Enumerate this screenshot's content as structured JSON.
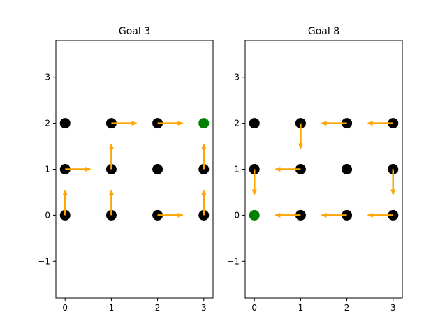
{
  "colors": {
    "state": "#000000",
    "goal": "#008000",
    "arrow": "#FFA500",
    "frame": "#000000",
    "background": "#ffffff"
  },
  "chart_data": [
    {
      "type": "scatter",
      "title": "Goal 3",
      "xlabel": "",
      "ylabel": "",
      "xlim": [
        -0.2,
        3.2
      ],
      "ylim": [
        -1.8,
        3.8
      ],
      "xticks": [
        0,
        1,
        2,
        3
      ],
      "yticks": [
        -1,
        0,
        1,
        2,
        3
      ],
      "tick_labels_x": [
        "0",
        "1",
        "2",
        "3"
      ],
      "tick_labels_y": [
        "−1",
        "0",
        "1",
        "2",
        "3"
      ],
      "grid": false,
      "points": [
        {
          "x": 0,
          "y": 0,
          "kind": "state"
        },
        {
          "x": 1,
          "y": 0,
          "kind": "state"
        },
        {
          "x": 2,
          "y": 0,
          "kind": "state"
        },
        {
          "x": 3,
          "y": 0,
          "kind": "state"
        },
        {
          "x": 0,
          "y": 1,
          "kind": "state"
        },
        {
          "x": 1,
          "y": 1,
          "kind": "state"
        },
        {
          "x": 2,
          "y": 1,
          "kind": "state"
        },
        {
          "x": 3,
          "y": 1,
          "kind": "state"
        },
        {
          "x": 0,
          "y": 2,
          "kind": "state"
        },
        {
          "x": 1,
          "y": 2,
          "kind": "state"
        },
        {
          "x": 2,
          "y": 2,
          "kind": "state"
        },
        {
          "x": 3,
          "y": 2,
          "kind": "goal"
        }
      ],
      "arrows": [
        {
          "x": 0,
          "y": 0,
          "dir": "up"
        },
        {
          "x": 1,
          "y": 0,
          "dir": "up"
        },
        {
          "x": 2,
          "y": 0,
          "dir": "right"
        },
        {
          "x": 3,
          "y": 0,
          "dir": "up"
        },
        {
          "x": 0,
          "y": 1,
          "dir": "right"
        },
        {
          "x": 1,
          "y": 1,
          "dir": "up"
        },
        {
          "x": 3,
          "y": 1,
          "dir": "up"
        },
        {
          "x": 1,
          "y": 2,
          "dir": "right"
        },
        {
          "x": 2,
          "y": 2,
          "dir": "right"
        }
      ]
    },
    {
      "type": "scatter",
      "title": "Goal 8",
      "xlabel": "",
      "ylabel": "",
      "xlim": [
        -0.2,
        3.2
      ],
      "ylim": [
        -1.8,
        3.8
      ],
      "xticks": [
        0,
        1,
        2,
        3
      ],
      "yticks": [
        -1,
        0,
        1,
        2,
        3
      ],
      "tick_labels_x": [
        "0",
        "1",
        "2",
        "3"
      ],
      "tick_labels_y": [
        "−1",
        "0",
        "1",
        "2",
        "3"
      ],
      "grid": false,
      "points": [
        {
          "x": 0,
          "y": 0,
          "kind": "goal"
        },
        {
          "x": 1,
          "y": 0,
          "kind": "state"
        },
        {
          "x": 2,
          "y": 0,
          "kind": "state"
        },
        {
          "x": 3,
          "y": 0,
          "kind": "state"
        },
        {
          "x": 0,
          "y": 1,
          "kind": "state"
        },
        {
          "x": 1,
          "y": 1,
          "kind": "state"
        },
        {
          "x": 2,
          "y": 1,
          "kind": "state"
        },
        {
          "x": 3,
          "y": 1,
          "kind": "state"
        },
        {
          "x": 0,
          "y": 2,
          "kind": "state"
        },
        {
          "x": 1,
          "y": 2,
          "kind": "state"
        },
        {
          "x": 2,
          "y": 2,
          "kind": "state"
        },
        {
          "x": 3,
          "y": 2,
          "kind": "state"
        }
      ],
      "arrows": [
        {
          "x": 1,
          "y": 0,
          "dir": "left"
        },
        {
          "x": 2,
          "y": 0,
          "dir": "left"
        },
        {
          "x": 3,
          "y": 0,
          "dir": "left"
        },
        {
          "x": 0,
          "y": 1,
          "dir": "down"
        },
        {
          "x": 1,
          "y": 1,
          "dir": "left"
        },
        {
          "x": 3,
          "y": 1,
          "dir": "down"
        },
        {
          "x": 1,
          "y": 2,
          "dir": "down"
        },
        {
          "x": 2,
          "y": 2,
          "dir": "left"
        },
        {
          "x": 3,
          "y": 2,
          "dir": "left"
        }
      ]
    }
  ]
}
